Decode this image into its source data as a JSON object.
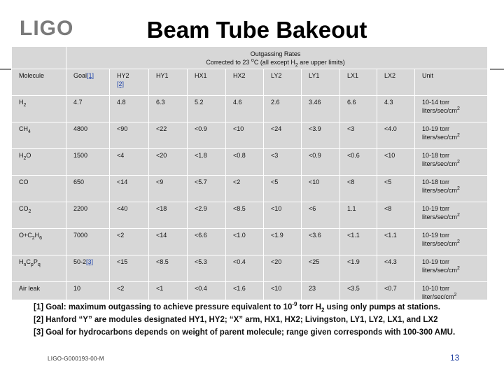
{
  "logo": "LIGO",
  "title": "Beam Tube Bakeout",
  "table": {
    "outgassing_header_line1": "Outgassing Rates",
    "outgassing_header_line2_pre": "Corrected to 23 ",
    "outgassing_header_degree": "o",
    "outgassing_header_line2_mid": "C (all except H",
    "outgassing_header_sub": "2",
    "outgassing_header_line2_post": " are upper limits)",
    "columns": [
      "Molecule",
      "Goal",
      "HY2",
      "HY1",
      "HX1",
      "HX2",
      "LY2",
      "LY1",
      "LX1",
      "LX2",
      "Unit"
    ],
    "goal_ref": "[1]",
    "hy2_ref": "[2]",
    "rows": [
      {
        "molecule": "H",
        "molecule_sub": "2",
        "values": [
          "4.7",
          "4.8",
          "6.3",
          "5.2",
          "4.6",
          "2.6",
          "3.46",
          "6.6",
          "4.3"
        ],
        "unit_exp": "10-14",
        "unit_line1": "torr",
        "unit_line2": "liters/sec/cm",
        "unit_sup": "2"
      },
      {
        "molecule": "CH",
        "molecule_sub": "4",
        "values": [
          "4800",
          "<90",
          "<22",
          "<0.9",
          "<10",
          "<24",
          "<3.9",
          "<3",
          "<4.0"
        ],
        "unit_exp": "10-19",
        "unit_line1": "torr",
        "unit_line2": "liters/sec/cm",
        "unit_sup": "2"
      },
      {
        "molecule": "H",
        "molecule_sub": "2",
        "molecule_suffix": "O",
        "values": [
          "1500",
          "<4",
          "<20",
          "<1.8",
          "<0.8",
          "<3",
          "<0.9",
          "<0.6",
          "<10"
        ],
        "unit_exp": "10-18",
        "unit_line1": "torr",
        "unit_line2": "liters/sec/cm",
        "unit_sup": "2"
      },
      {
        "molecule": "CO",
        "values": [
          "650",
          "<14",
          "<9",
          "<5.7",
          "<2",
          "<5",
          "<10",
          "<8",
          "<5"
        ],
        "unit_exp": "10-18",
        "unit_line1": "torr",
        "unit_line2": "liters/sec/cm",
        "unit_sup": "2"
      },
      {
        "molecule": "CO",
        "molecule_sub": "2",
        "values": [
          "2200",
          "<40",
          "<18",
          "<2.9",
          "<8.5",
          "<10",
          "<6",
          "1.1",
          "<8"
        ],
        "unit_exp": "10-19",
        "unit_line1": "torr",
        "unit_line2": "liters/sec/cm",
        "unit_sup": "2"
      },
      {
        "molecule": "O+C",
        "molecule_sub": "2",
        "molecule_suffix": "H",
        "molecule_sub2": "6",
        "values": [
          "7000",
          "<2",
          "<14",
          "<6.6",
          "<1.0",
          "<1.9",
          "<3.6",
          "<1.1",
          "<1.1"
        ],
        "unit_exp": "10-19",
        "unit_line1": "torr",
        "unit_line2": "liters/sec/cm",
        "unit_sup": "2"
      },
      {
        "molecule": "H",
        "molecule_sub": "n",
        "molecule_suffix": "C",
        "molecule_sub2": "p",
        "molecule_suffix2": "P",
        "molecule_sub3": "q",
        "values": [
          "50-2",
          "<15",
          "<8.5",
          "<5.3",
          "<0.4",
          "<20",
          "<25",
          "<1.9",
          "<4.3"
        ],
        "goal_ref": "[3]",
        "unit_exp": "10-19",
        "unit_line1": "torr",
        "unit_line2": "liters/sec/cm",
        "unit_sup": "2"
      },
      {
        "molecule": "Air leak",
        "values": [
          "10",
          "<2",
          "<1",
          "<0.4",
          "<1.6",
          "<10",
          "23",
          "<3.5",
          "<0.7"
        ],
        "unit_exp": "10-10",
        "unit_line1": "torr",
        "unit_line2": "liter/sec/cm",
        "unit_sup": "2"
      }
    ]
  },
  "footnotes": {
    "fn1_pre": "[1] Goal: maximum outgassing to achieve pressure equivalent to 10",
    "fn1_sup": "-9",
    "fn1_mid": " torr H",
    "fn1_sub": "2",
    "fn1_post": "  using only pumps at stations.",
    "fn2": "[2] Hanford “Y”  are modules designated HY1, HY2; “X” arm, HX1, HX2; Livingston, LY1, LY2, LX1, and LX2",
    "fn3": "[3] Goal for hydrocarbons depends on weight of parent molecule; range given corresponds with 100-300 AMU."
  },
  "doc_id": "LIGO-G000193-00-M",
  "page_number": "13"
}
